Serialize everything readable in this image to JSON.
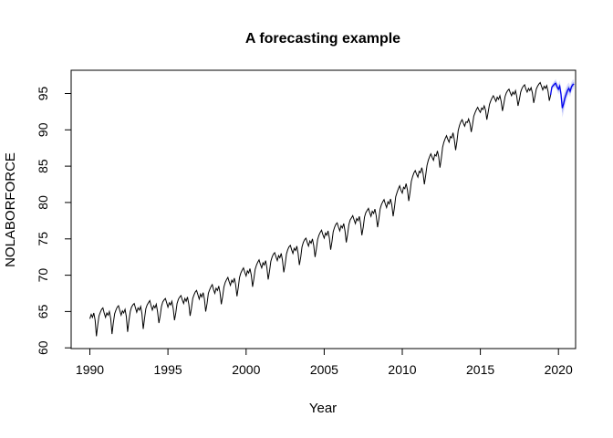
{
  "title": "A forecasting example",
  "axes": {
    "x_label": "Year",
    "y_label": "NOLABORFORCE",
    "x_ticks": [
      1990,
      1995,
      2000,
      2005,
      2010,
      2015,
      2020
    ],
    "y_ticks": [
      60,
      65,
      70,
      75,
      80,
      85,
      90,
      95
    ]
  },
  "colors": {
    "background": "#ffffff",
    "box": "#000000",
    "observed_line": "#000000",
    "forecast_line": "#0000ee",
    "band_outer": "rgba(70,90,235,0.18)",
    "band_inner": "rgba(70,90,235,0.34)"
  },
  "chart_data": {
    "type": "line",
    "title": "A forecasting example",
    "xlabel": "Year",
    "ylabel": "NOLABORFORCE",
    "xlim": [
      1988.8,
      2021.1
    ],
    "ylim": [
      59.9,
      98.2
    ],
    "x_ticks": [
      1990,
      1995,
      2000,
      2005,
      2010,
      2015,
      2020
    ],
    "y_ticks": [
      60,
      65,
      70,
      75,
      80,
      85,
      90,
      95
    ],
    "grid": false,
    "legend": "none",
    "series": [
      {
        "name": "observed",
        "kind": "monthly-values",
        "color": "#000000",
        "x_start": 1990,
        "frequency_per_year": 12,
        "values": [
          64.0,
          64.6,
          64.2,
          64.8,
          63.8,
          61.6,
          63.1,
          64.4,
          64.9,
          65.3,
          65.5,
          64.8,
          64.2,
          64.8,
          64.5,
          65.0,
          64.0,
          61.9,
          63.4,
          64.7,
          65.2,
          65.6,
          65.8,
          65.1,
          64.5,
          65.1,
          64.8,
          65.3,
          64.3,
          62.2,
          63.7,
          65.0,
          65.6,
          65.9,
          66.1,
          65.5,
          64.9,
          65.5,
          65.2,
          65.7,
          64.7,
          62.6,
          64.1,
          65.4,
          65.9,
          66.2,
          66.5,
          65.8,
          65.2,
          65.8,
          65.5,
          66.0,
          65.0,
          63.4,
          64.4,
          65.7,
          66.3,
          66.6,
          66.8,
          66.2,
          65.6,
          66.2,
          65.9,
          66.4,
          65.4,
          63.8,
          64.8,
          66.1,
          66.7,
          67.0,
          67.2,
          66.6,
          66.1,
          66.8,
          66.4,
          67.0,
          66.0,
          64.4,
          65.4,
          66.8,
          67.3,
          67.7,
          67.9,
          67.3,
          66.7,
          67.4,
          67.0,
          67.6,
          66.7,
          65.0,
          66.1,
          67.5,
          68.0,
          68.4,
          68.7,
          68.0,
          67.5,
          68.2,
          67.9,
          68.5,
          67.6,
          66.0,
          67.1,
          68.4,
          69.0,
          69.4,
          69.7,
          69.1,
          68.6,
          69.3,
          69.0,
          69.6,
          68.7,
          67.1,
          68.3,
          69.7,
          70.3,
          70.7,
          71.0,
          70.4,
          69.9,
          70.6,
          70.3,
          70.9,
          70.0,
          68.4,
          69.5,
          70.8,
          71.4,
          71.8,
          72.1,
          71.5,
          71.0,
          71.7,
          71.4,
          72.0,
          71.0,
          69.4,
          70.5,
          71.9,
          72.5,
          72.9,
          73.1,
          72.5,
          72.0,
          72.7,
          72.4,
          73.0,
          72.0,
          70.4,
          71.5,
          72.9,
          73.5,
          73.9,
          74.1,
          73.5,
          73.0,
          73.7,
          73.4,
          74.0,
          73.0,
          71.4,
          72.5,
          73.9,
          74.5,
          74.9,
          75.1,
          74.5,
          74.0,
          74.7,
          74.4,
          75.0,
          74.1,
          72.5,
          73.6,
          74.9,
          75.5,
          75.9,
          76.2,
          75.6,
          75.1,
          75.8,
          75.5,
          76.1,
          75.1,
          73.5,
          74.6,
          76.0,
          76.6,
          77.0,
          77.2,
          76.6,
          76.1,
          76.8,
          76.5,
          77.1,
          76.1,
          74.5,
          75.6,
          77.0,
          77.6,
          77.9,
          78.2,
          77.6,
          77.1,
          77.8,
          77.5,
          78.1,
          77.1,
          75.5,
          76.6,
          78.0,
          78.6,
          78.9,
          79.2,
          78.6,
          78.1,
          78.8,
          78.5,
          79.1,
          78.2,
          76.6,
          77.7,
          79.1,
          79.7,
          80.1,
          80.4,
          79.8,
          79.3,
          80.1,
          79.8,
          80.5,
          79.7,
          78.1,
          79.3,
          80.8,
          81.4,
          81.9,
          82.3,
          81.7,
          81.3,
          82.1,
          81.9,
          82.6,
          81.7,
          80.2,
          81.4,
          82.9,
          83.6,
          84.1,
          84.4,
          83.9,
          83.5,
          84.3,
          84.1,
          84.8,
          84.0,
          82.5,
          83.7,
          85.1,
          85.8,
          86.3,
          86.7,
          86.2,
          85.8,
          86.6,
          86.4,
          87.1,
          86.3,
          84.8,
          86.1,
          87.6,
          88.3,
          88.8,
          89.2,
          88.7,
          88.3,
          89.1,
          88.9,
          89.6,
          88.7,
          87.2,
          88.4,
          89.9,
          90.6,
          91.1,
          91.4,
          90.9,
          90.5,
          91.1,
          91.0,
          91.5,
          90.9,
          89.7,
          90.7,
          91.9,
          92.4,
          92.8,
          93.1,
          92.7,
          92.4,
          93.0,
          92.8,
          93.3,
          92.7,
          91.4,
          92.4,
          93.5,
          94.0,
          94.4,
          94.7,
          94.3,
          93.9,
          94.5,
          94.2,
          94.7,
          93.9,
          92.6,
          93.5,
          94.6,
          95.1,
          95.4,
          95.6,
          95.1,
          94.7,
          95.2,
          94.9,
          95.4,
          94.6,
          93.3,
          94.2,
          95.2,
          95.7,
          96.0,
          96.2,
          95.6,
          95.2,
          95.7,
          95.4,
          95.8,
          95.1,
          93.7,
          94.6,
          95.6,
          96.0,
          96.3,
          96.5,
          96.0,
          95.5,
          96.0,
          95.7,
          96.1,
          95.3,
          94.0,
          94.8
        ]
      },
      {
        "name": "forecast",
        "kind": "forecast-with-bands",
        "color": "#0000ee",
        "x": [
          2019.5,
          2019.583,
          2019.667,
          2019.75,
          2019.833,
          2019.917,
          2020.0,
          2020.083,
          2020.167,
          2020.25,
          2020.333,
          2020.417,
          2020.5,
          2020.583,
          2020.667,
          2020.75,
          2020.833,
          2020.917,
          2021.0
        ],
        "mean": [
          94.8,
          95.9,
          96.1,
          96.3,
          96.4,
          95.9,
          95.6,
          96.0,
          94.9,
          93.0,
          93.6,
          94.4,
          94.9,
          95.4,
          95.7,
          95.3,
          95.9,
          96.2,
          96.3
        ],
        "lower80": [
          94.8,
          95.7,
          95.9,
          96.0,
          96.1,
          95.6,
          95.2,
          95.6,
          94.4,
          92.3,
          93.0,
          93.8,
          94.4,
          94.9,
          95.3,
          94.9,
          95.5,
          95.9,
          96.0
        ],
        "upper80": [
          94.8,
          96.1,
          96.3,
          96.6,
          96.7,
          96.2,
          96.0,
          96.4,
          95.4,
          93.7,
          94.2,
          95.0,
          95.4,
          95.9,
          96.1,
          95.7,
          96.3,
          96.5,
          96.6
        ],
        "lower95": [
          94.8,
          95.5,
          95.7,
          95.8,
          95.8,
          95.3,
          94.9,
          95.2,
          93.9,
          91.7,
          92.4,
          93.3,
          93.9,
          94.5,
          94.9,
          94.5,
          95.2,
          95.5,
          95.7
        ],
        "upper95": [
          94.8,
          96.3,
          96.5,
          96.8,
          97.0,
          96.5,
          96.3,
          96.8,
          95.9,
          94.3,
          94.8,
          95.5,
          95.9,
          96.3,
          96.5,
          96.1,
          96.6,
          96.9,
          96.9
        ]
      }
    ]
  }
}
